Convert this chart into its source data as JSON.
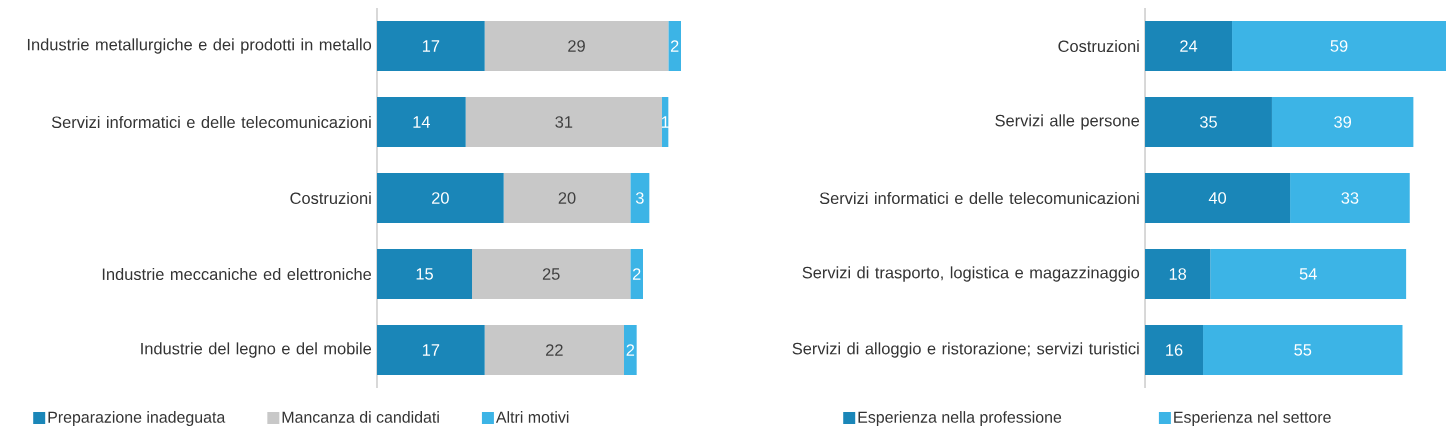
{
  "chart_data": [
    {
      "type": "bar",
      "orientation": "horizontal",
      "stacked": true,
      "data_labels": true,
      "legend": "bottom",
      "categories": [
        "Industrie metallurgiche e dei prodotti in metallo",
        "Servizi informatici e delle telecomunicazioni",
        "Costruzioni",
        "Industrie meccaniche ed elettroniche",
        "Industrie del legno e del mobile"
      ],
      "series": [
        {
          "name": "Preparazione inadeguata",
          "color": "#1a86b8",
          "values": [
            17,
            14,
            20,
            15,
            17
          ]
        },
        {
          "name": "Mancanza di candidati",
          "color": "#c8c8c8",
          "values": [
            29,
            31,
            20,
            25,
            22
          ]
        },
        {
          "name": "Altri motivi",
          "color": "#3cb4e6",
          "values": [
            2,
            1,
            3,
            2,
            2
          ]
        }
      ]
    },
    {
      "type": "bar",
      "orientation": "horizontal",
      "stacked": true,
      "data_labels": true,
      "legend": "bottom",
      "categories": [
        "Costruzioni",
        "Servizi alle persone",
        "Servizi informatici e delle telecomunicazioni",
        "Servizi di trasporto, logistica e magazzinaggio",
        "Servizi di alloggio e ristorazione; servizi turistici"
      ],
      "series": [
        {
          "name": "Esperienza nella professione",
          "color": "#1a86b8",
          "values": [
            24,
            35,
            40,
            18,
            16
          ]
        },
        {
          "name": "Esperienza nel settore",
          "color": "#3cb4e6",
          "values": [
            59,
            39,
            33,
            54,
            55
          ]
        }
      ]
    }
  ]
}
